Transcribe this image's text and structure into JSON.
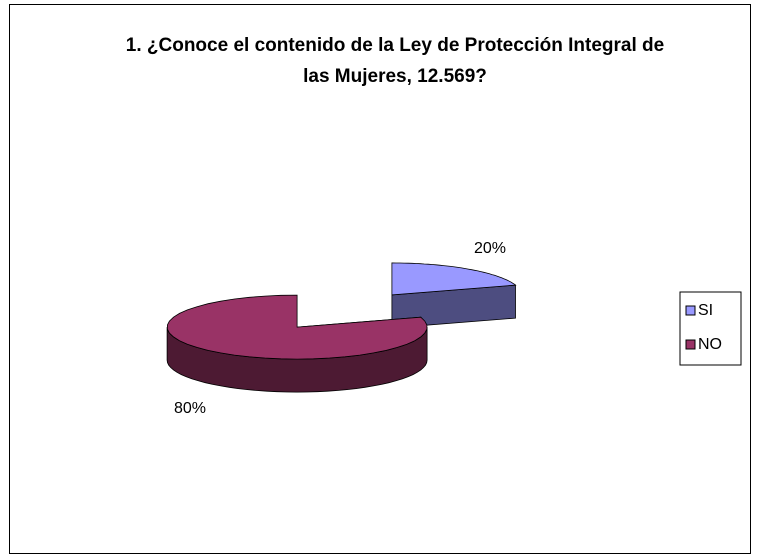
{
  "chart_data": {
    "type": "pie",
    "title": "1. ¿Conoce el contenido de la Ley de Protección Integral de las Mujeres, 12.569?",
    "categories": [
      "SI",
      "NO"
    ],
    "values": [
      20,
      80
    ],
    "value_labels": [
      "20%",
      "80%"
    ],
    "colors": [
      "#9999ff",
      "#993366"
    ],
    "legend": "right"
  }
}
